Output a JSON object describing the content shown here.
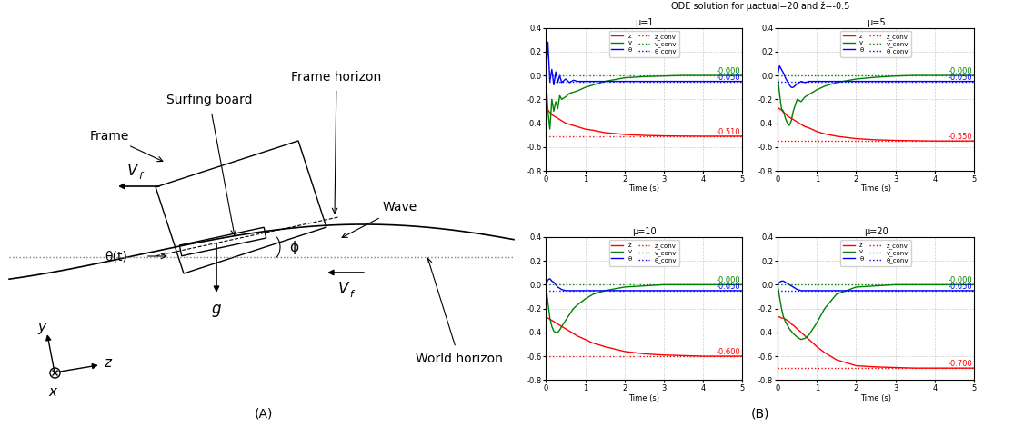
{
  "diagram": {
    "panel_label": "(A)",
    "labels": {
      "frame": "Frame",
      "board": "Surfing board",
      "frame_horizon": "Frame horizon",
      "wave": "Wave",
      "world_horizon": "World horizon",
      "theta": "θ(t)",
      "phi": "ϕ",
      "gravity": "g",
      "velocity": {
        "main": "V",
        "subscript": "f"
      },
      "axis_x": "x",
      "axis_y": "y",
      "axis_z": "z"
    }
  },
  "panel_label": "(B)",
  "suptitle": "ODE solution for μactual=20 and ž=-0.5",
  "chart_data": [
    {
      "type": "line",
      "title": "μ=1",
      "x_label": "Time (s)",
      "grid": true,
      "legend": "upper center",
      "xlim": [
        0,
        5
      ],
      "xticks": [
        0,
        1,
        2,
        3,
        4,
        5
      ],
      "ylim": [
        -0.8,
        0.4
      ],
      "yticks": [
        -0.8,
        -0.6,
        -0.4,
        -0.2,
        0.0,
        0.2,
        0.4
      ],
      "x": [
        0,
        0.05,
        0.1,
        0.15,
        0.2,
        0.25,
        0.3,
        0.35,
        0.4,
        0.5,
        0.6,
        0.7,
        0.8,
        1.0,
        1.2,
        1.5,
        2.0,
        2.5,
        3.0,
        3.5,
        4.0,
        5.0
      ],
      "series": [
        {
          "name": "z",
          "color": "red",
          "line_style": "solid",
          "values": [
            -0.27,
            -0.29,
            -0.31,
            -0.33,
            -0.34,
            -0.35,
            -0.36,
            -0.37,
            -0.38,
            -0.4,
            -0.41,
            -0.42,
            -0.43,
            -0.45,
            -0.46,
            -0.48,
            -0.495,
            -0.503,
            -0.507,
            -0.509,
            -0.51,
            -0.51
          ]
        },
        {
          "name": "v",
          "color": "green",
          "line_style": "solid",
          "values": [
            0,
            -0.3,
            -0.45,
            -0.2,
            -0.3,
            -0.22,
            -0.28,
            -0.17,
            -0.2,
            -0.18,
            -0.15,
            -0.14,
            -0.13,
            -0.1,
            -0.08,
            -0.05,
            -0.02,
            -0.01,
            -0.005,
            0,
            0,
            0
          ]
        },
        {
          "name": "θ",
          "color": "blue",
          "line_style": "solid",
          "values": [
            0,
            0.28,
            -0.05,
            0.05,
            -0.08,
            0.03,
            -0.06,
            0.0,
            -0.06,
            -0.03,
            -0.06,
            -0.04,
            -0.05,
            -0.05,
            -0.05,
            -0.05,
            -0.05,
            -0.05,
            -0.05,
            -0.05,
            -0.05,
            -0.05
          ]
        },
        {
          "name": "z_conv",
          "color": "red",
          "line_style": "dotted",
          "x": [
            0,
            5
          ],
          "values": [
            -0.51,
            -0.51
          ]
        },
        {
          "name": "v_conv",
          "color": "green",
          "line_style": "dotted",
          "x": [
            0,
            5
          ],
          "values": [
            0,
            0
          ]
        },
        {
          "name": "θ_conv",
          "color": "blue",
          "line_style": "dotted",
          "x": [
            0,
            5
          ],
          "values": [
            -0.05,
            -0.05
          ]
        }
      ],
      "annotations": [
        {
          "text": "-0.000",
          "y": 0,
          "color": "green"
        },
        {
          "text": "-0.050",
          "y": -0.05,
          "color": "blue"
        },
        {
          "text": "-0.510",
          "y": -0.51,
          "color": "red"
        }
      ]
    },
    {
      "type": "line",
      "title": "μ=5",
      "x_label": "Time (s)",
      "grid": true,
      "legend": "upper center",
      "xlim": [
        0,
        5
      ],
      "xticks": [
        0,
        1,
        2,
        3,
        4,
        5
      ],
      "ylim": [
        -0.8,
        0.4
      ],
      "yticks": [
        -0.8,
        -0.6,
        -0.4,
        -0.2,
        0.0,
        0.2,
        0.4
      ],
      "x": [
        0,
        0.05,
        0.1,
        0.15,
        0.2,
        0.25,
        0.3,
        0.35,
        0.4,
        0.5,
        0.6,
        0.7,
        0.8,
        1.0,
        1.2,
        1.5,
        2.0,
        2.5,
        3.0,
        3.5,
        4.0,
        5.0
      ],
      "series": [
        {
          "name": "z",
          "color": "red",
          "line_style": "solid",
          "values": [
            -0.27,
            -0.28,
            -0.29,
            -0.31,
            -0.32,
            -0.34,
            -0.35,
            -0.36,
            -0.37,
            -0.39,
            -0.41,
            -0.43,
            -0.44,
            -0.47,
            -0.49,
            -0.51,
            -0.53,
            -0.54,
            -0.545,
            -0.548,
            -0.55,
            -0.55
          ]
        },
        {
          "name": "v",
          "color": "green",
          "line_style": "solid",
          "values": [
            0,
            -0.15,
            -0.28,
            -0.3,
            -0.36,
            -0.4,
            -0.42,
            -0.38,
            -0.3,
            -0.2,
            -0.22,
            -0.18,
            -0.16,
            -0.12,
            -0.09,
            -0.06,
            -0.03,
            -0.015,
            -0.005,
            0,
            0,
            0
          ]
        },
        {
          "name": "θ",
          "color": "blue",
          "line_style": "solid",
          "values": [
            0,
            0.08,
            0.05,
            0.02,
            -0.02,
            -0.05,
            -0.08,
            -0.1,
            -0.1,
            -0.07,
            -0.05,
            -0.06,
            -0.05,
            -0.05,
            -0.05,
            -0.05,
            -0.05,
            -0.05,
            -0.05,
            -0.05,
            -0.05,
            -0.05
          ]
        },
        {
          "name": "z_conv",
          "color": "red",
          "line_style": "dotted",
          "x": [
            0,
            5
          ],
          "values": [
            -0.55,
            -0.55
          ]
        },
        {
          "name": "v_conv",
          "color": "green",
          "line_style": "dotted",
          "x": [
            0,
            5
          ],
          "values": [
            0,
            0
          ]
        },
        {
          "name": "θ_conv",
          "color": "blue",
          "line_style": "dotted",
          "x": [
            0,
            5
          ],
          "values": [
            -0.05,
            -0.05
          ]
        }
      ],
      "annotations": [
        {
          "text": "-0.000",
          "y": 0,
          "color": "green"
        },
        {
          "text": "-0.050",
          "y": -0.05,
          "color": "blue"
        },
        {
          "text": "-0.550",
          "y": -0.55,
          "color": "red"
        }
      ]
    },
    {
      "type": "line",
      "title": "μ=10",
      "x_label": "Time (s)",
      "grid": true,
      "legend": "upper center",
      "xlim": [
        0,
        5
      ],
      "xticks": [
        0,
        1,
        2,
        3,
        4,
        5
      ],
      "ylim": [
        -0.8,
        0.4
      ],
      "yticks": [
        -0.8,
        -0.6,
        -0.4,
        -0.2,
        0.0,
        0.2,
        0.4
      ],
      "x": [
        0,
        0.05,
        0.1,
        0.15,
        0.2,
        0.25,
        0.3,
        0.35,
        0.4,
        0.5,
        0.6,
        0.7,
        0.8,
        1.0,
        1.2,
        1.5,
        2.0,
        2.5,
        3.0,
        3.5,
        4.0,
        5.0
      ],
      "series": [
        {
          "name": "z",
          "color": "red",
          "line_style": "solid",
          "values": [
            -0.27,
            -0.28,
            -0.29,
            -0.3,
            -0.31,
            -0.32,
            -0.33,
            -0.34,
            -0.35,
            -0.37,
            -0.39,
            -0.41,
            -0.43,
            -0.46,
            -0.49,
            -0.52,
            -0.56,
            -0.58,
            -0.59,
            -0.595,
            -0.6,
            -0.6
          ]
        },
        {
          "name": "v",
          "color": "green",
          "line_style": "solid",
          "values": [
            0,
            -0.15,
            -0.28,
            -0.35,
            -0.39,
            -0.4,
            -0.4,
            -0.38,
            -0.35,
            -0.3,
            -0.25,
            -0.2,
            -0.17,
            -0.12,
            -0.08,
            -0.05,
            -0.02,
            -0.01,
            0,
            0,
            0,
            0
          ]
        },
        {
          "name": "θ",
          "color": "blue",
          "line_style": "solid",
          "values": [
            0,
            0.04,
            0.05,
            0.03,
            0.02,
            0.0,
            -0.02,
            -0.03,
            -0.04,
            -0.05,
            -0.05,
            -0.05,
            -0.05,
            -0.05,
            -0.05,
            -0.05,
            -0.05,
            -0.05,
            -0.05,
            -0.05,
            -0.05,
            -0.05
          ]
        },
        {
          "name": "z_conv",
          "color": "red",
          "line_style": "dotted",
          "x": [
            0,
            5
          ],
          "values": [
            -0.6,
            -0.6
          ]
        },
        {
          "name": "v_conv",
          "color": "green",
          "line_style": "dotted",
          "x": [
            0,
            5
          ],
          "values": [
            0,
            0
          ]
        },
        {
          "name": "θ_conv",
          "color": "blue",
          "line_style": "dotted",
          "x": [
            0,
            5
          ],
          "values": [
            -0.05,
            -0.05
          ]
        }
      ],
      "annotations": [
        {
          "text": "-0.000",
          "y": 0,
          "color": "green"
        },
        {
          "text": "-0.050",
          "y": -0.05,
          "color": "blue"
        },
        {
          "text": "-0.600",
          "y": -0.6,
          "color": "red"
        }
      ]
    },
    {
      "type": "line",
      "title": "μ=20",
      "x_label": "Time (s)",
      "grid": true,
      "legend": "upper center",
      "xlim": [
        0,
        5
      ],
      "xticks": [
        0,
        1,
        2,
        3,
        4,
        5
      ],
      "ylim": [
        -0.8,
        0.4
      ],
      "yticks": [
        -0.8,
        -0.6,
        -0.4,
        -0.2,
        0.0,
        0.2,
        0.4
      ],
      "x": [
        0,
        0.05,
        0.1,
        0.15,
        0.2,
        0.25,
        0.3,
        0.35,
        0.4,
        0.5,
        0.6,
        0.7,
        0.8,
        1.0,
        1.2,
        1.5,
        2.0,
        2.5,
        3.0,
        3.5,
        4.0,
        5.0
      ],
      "series": [
        {
          "name": "z",
          "color": "red",
          "line_style": "solid",
          "values": [
            -0.27,
            -0.27,
            -0.28,
            -0.28,
            -0.29,
            -0.3,
            -0.31,
            -0.33,
            -0.34,
            -0.37,
            -0.4,
            -0.43,
            -0.46,
            -0.52,
            -0.57,
            -0.63,
            -0.68,
            -0.69,
            -0.695,
            -0.7,
            -0.7,
            -0.7
          ]
        },
        {
          "name": "v",
          "color": "green",
          "line_style": "solid",
          "values": [
            0,
            -0.1,
            -0.2,
            -0.27,
            -0.31,
            -0.34,
            -0.37,
            -0.39,
            -0.41,
            -0.44,
            -0.46,
            -0.45,
            -0.42,
            -0.32,
            -0.2,
            -0.08,
            -0.02,
            -0.01,
            0,
            0,
            0,
            0
          ]
        },
        {
          "name": "θ",
          "color": "blue",
          "line_style": "solid",
          "values": [
            0,
            0.02,
            0.03,
            0.03,
            0.02,
            0.01,
            0,
            -0.01,
            -0.02,
            -0.04,
            -0.05,
            -0.05,
            -0.05,
            -0.05,
            -0.05,
            -0.05,
            -0.05,
            -0.05,
            -0.05,
            -0.05,
            -0.05,
            -0.05
          ]
        },
        {
          "name": "z_conv",
          "color": "red",
          "line_style": "dotted",
          "x": [
            0,
            5
          ],
          "values": [
            -0.7,
            -0.7
          ]
        },
        {
          "name": "v_conv",
          "color": "green",
          "line_style": "dotted",
          "x": [
            0,
            5
          ],
          "values": [
            0,
            0
          ]
        },
        {
          "name": "θ_conv",
          "color": "blue",
          "line_style": "dotted",
          "x": [
            0,
            5
          ],
          "values": [
            -0.05,
            -0.05
          ]
        }
      ],
      "annotations": [
        {
          "text": "-0.000",
          "y": 0,
          "color": "green"
        },
        {
          "text": "-0.050",
          "y": -0.05,
          "color": "blue"
        },
        {
          "text": "-0.700",
          "y": -0.7,
          "color": "red"
        }
      ]
    }
  ]
}
